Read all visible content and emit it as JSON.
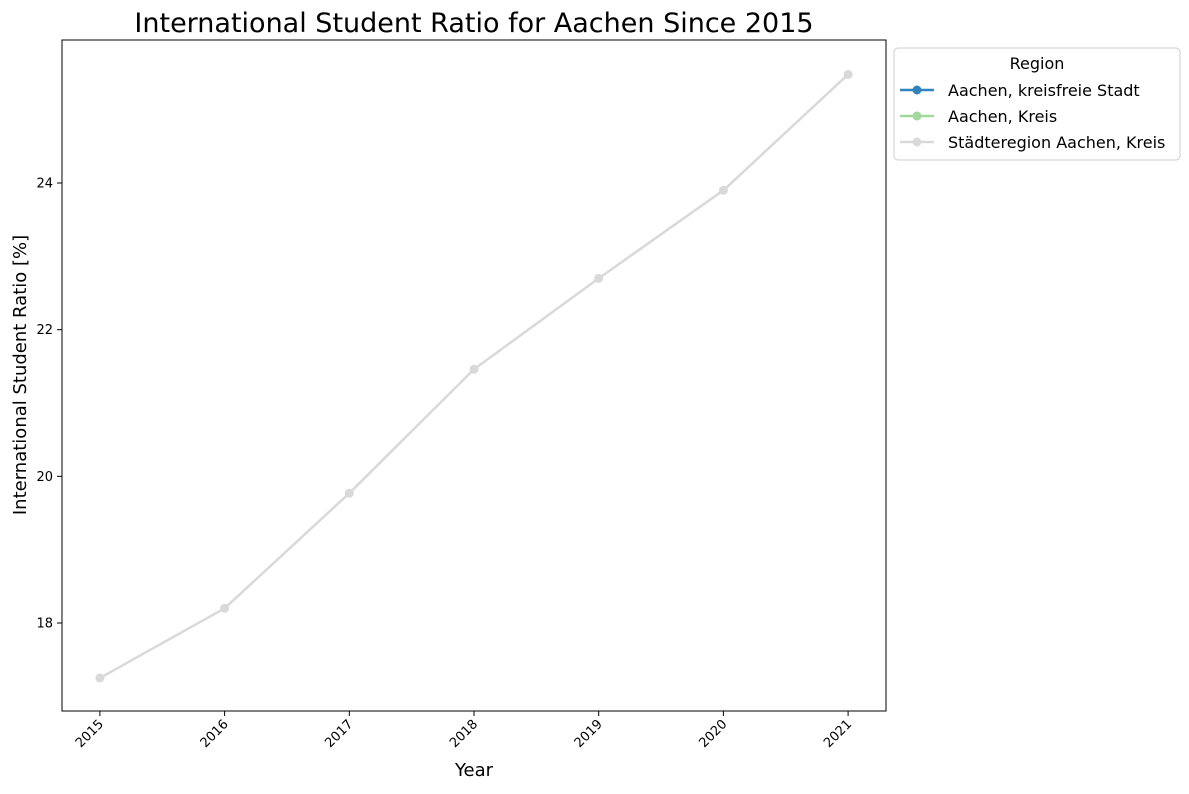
{
  "chart_data": {
    "type": "line",
    "title": "International Student Ratio for Aachen Since 2015",
    "xlabel": "Year",
    "ylabel": "International Student Ratio [%]",
    "x": [
      "2015",
      "2016",
      "2017",
      "2018",
      "2019",
      "2020",
      "2021"
    ],
    "ylim": [
      16.8,
      25.95
    ],
    "yticks": [
      "18",
      "20",
      "22",
      "24"
    ],
    "grid": false,
    "legend": {
      "title": "Region",
      "placement": "outside upper right",
      "entries": [
        {
          "label": "Aachen, kreisfreie Stadt",
          "color": "#3182bd"
        },
        {
          "label": "Aachen, Kreis",
          "color": "#a1d99b"
        },
        {
          "label": "Städteregion Aachen, Kreis",
          "color": "#d9d9d9"
        }
      ]
    },
    "series": [
      {
        "name": "Städteregion Aachen, Kreis",
        "color": "#d9d9d9",
        "values": [
          17.25,
          18.2,
          19.77,
          21.46,
          22.7,
          23.9,
          25.48
        ]
      }
    ]
  }
}
